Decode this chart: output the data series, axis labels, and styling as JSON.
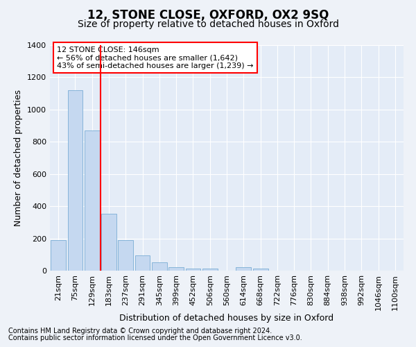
{
  "title": "12, STONE CLOSE, OXFORD, OX2 9SQ",
  "subtitle": "Size of property relative to detached houses in Oxford",
  "xlabel": "Distribution of detached houses by size in Oxford",
  "ylabel": "Number of detached properties",
  "footnote1": "Contains HM Land Registry data © Crown copyright and database right 2024.",
  "footnote2": "Contains public sector information licensed under the Open Government Licence v3.0.",
  "annotation_title": "12 STONE CLOSE: 146sqm",
  "annotation_line2": "← 56% of detached houses are smaller (1,642)",
  "annotation_line3": "43% of semi-detached houses are larger (1,239) →",
  "bar_color": "#c5d8f0",
  "bar_edge_color": "#7aadd4",
  "red_line_x": 2.5,
  "categories": [
    "21sqm",
    "75sqm",
    "129sqm",
    "183sqm",
    "237sqm",
    "291sqm",
    "345sqm",
    "399sqm",
    "452sqm",
    "506sqm",
    "560sqm",
    "614sqm",
    "668sqm",
    "722sqm",
    "776sqm",
    "830sqm",
    "884sqm",
    "938sqm",
    "992sqm",
    "1046sqm",
    "1100sqm"
  ],
  "values": [
    190,
    1120,
    870,
    355,
    190,
    95,
    50,
    20,
    15,
    15,
    0,
    20,
    15,
    0,
    0,
    0,
    0,
    0,
    0,
    0,
    0
  ],
  "ylim": [
    0,
    1400
  ],
  "yticks": [
    0,
    200,
    400,
    600,
    800,
    1000,
    1200,
    1400
  ],
  "background_color": "#eef2f8",
  "axes_background": "#e4ecf7",
  "grid_color": "#ffffff",
  "title_fontsize": 12,
  "subtitle_fontsize": 10,
  "axis_label_fontsize": 9,
  "tick_fontsize": 8,
  "footnote_fontsize": 7,
  "annotation_fontsize": 8
}
